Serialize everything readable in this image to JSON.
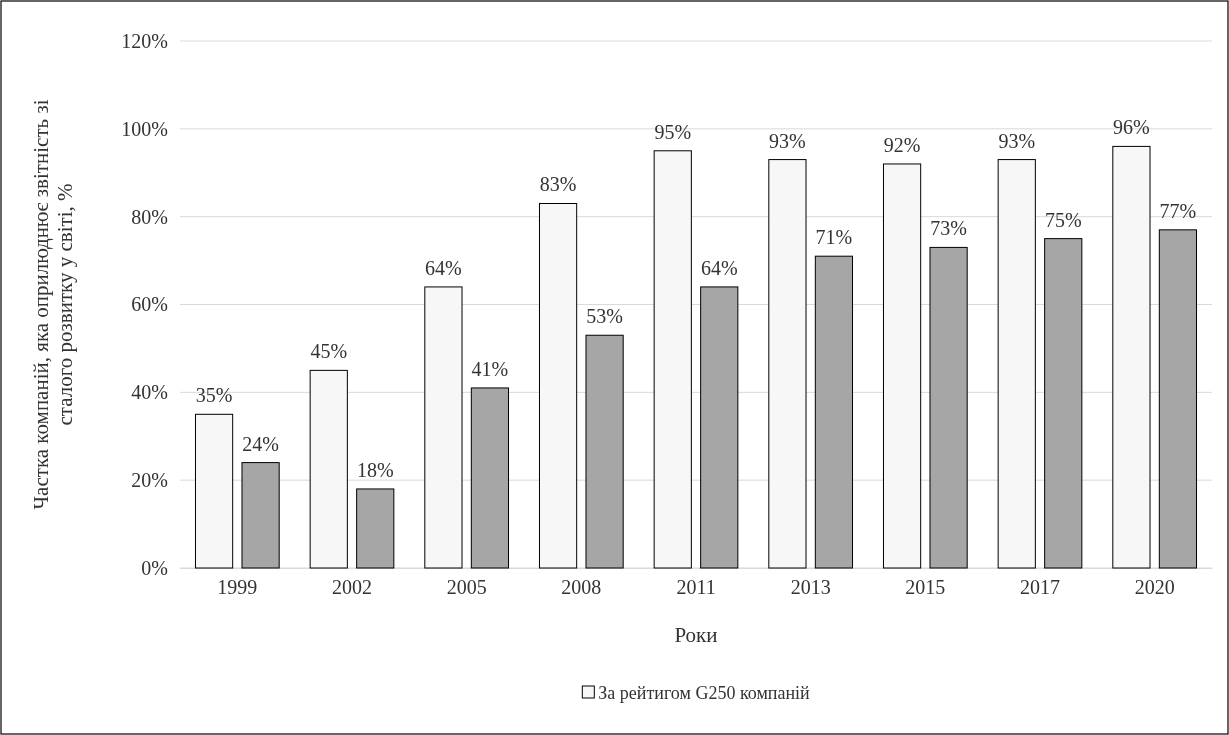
{
  "chart_data": {
    "type": "bar",
    "xlabel": "Роки",
    "ylabel": "Частка компаній, яка оприлюднює звітність зі сталого розвитку у світі, %",
    "categories": [
      "1999",
      "2002",
      "2005",
      "2008",
      "2011",
      "2013",
      "2015",
      "2017",
      "2020"
    ],
    "series": [
      {
        "name": "За рейтигом G250 компаній",
        "color": "#f7f7f7",
        "values": [
          35,
          45,
          64,
          83,
          95,
          93,
          92,
          93,
          96
        ],
        "value_labels": [
          "35%",
          "45%",
          "64%",
          "83%",
          "95%",
          "93%",
          "92%",
          "93%",
          "96%"
        ]
      },
      {
        "color": "#a6a6a6",
        "values": [
          24,
          18,
          41,
          53,
          64,
          71,
          73,
          75,
          77
        ],
        "value_labels": [
          "24%",
          "18%",
          "41%",
          "53%",
          "64%",
          "71%",
          "73%",
          "75%",
          "77%"
        ]
      }
    ],
    "ylim": [
      0,
      120
    ],
    "yticks": [
      {
        "value": 0,
        "label": "0%"
      },
      {
        "value": 20,
        "label": "20%"
      },
      {
        "value": 40,
        "label": "40%"
      },
      {
        "value": 60,
        "label": "60%"
      },
      {
        "value": 80,
        "label": "80%"
      },
      {
        "value": 100,
        "label": "100%"
      },
      {
        "value": 120,
        "label": "120%"
      }
    ],
    "grid": "y",
    "legend": "bottom"
  }
}
